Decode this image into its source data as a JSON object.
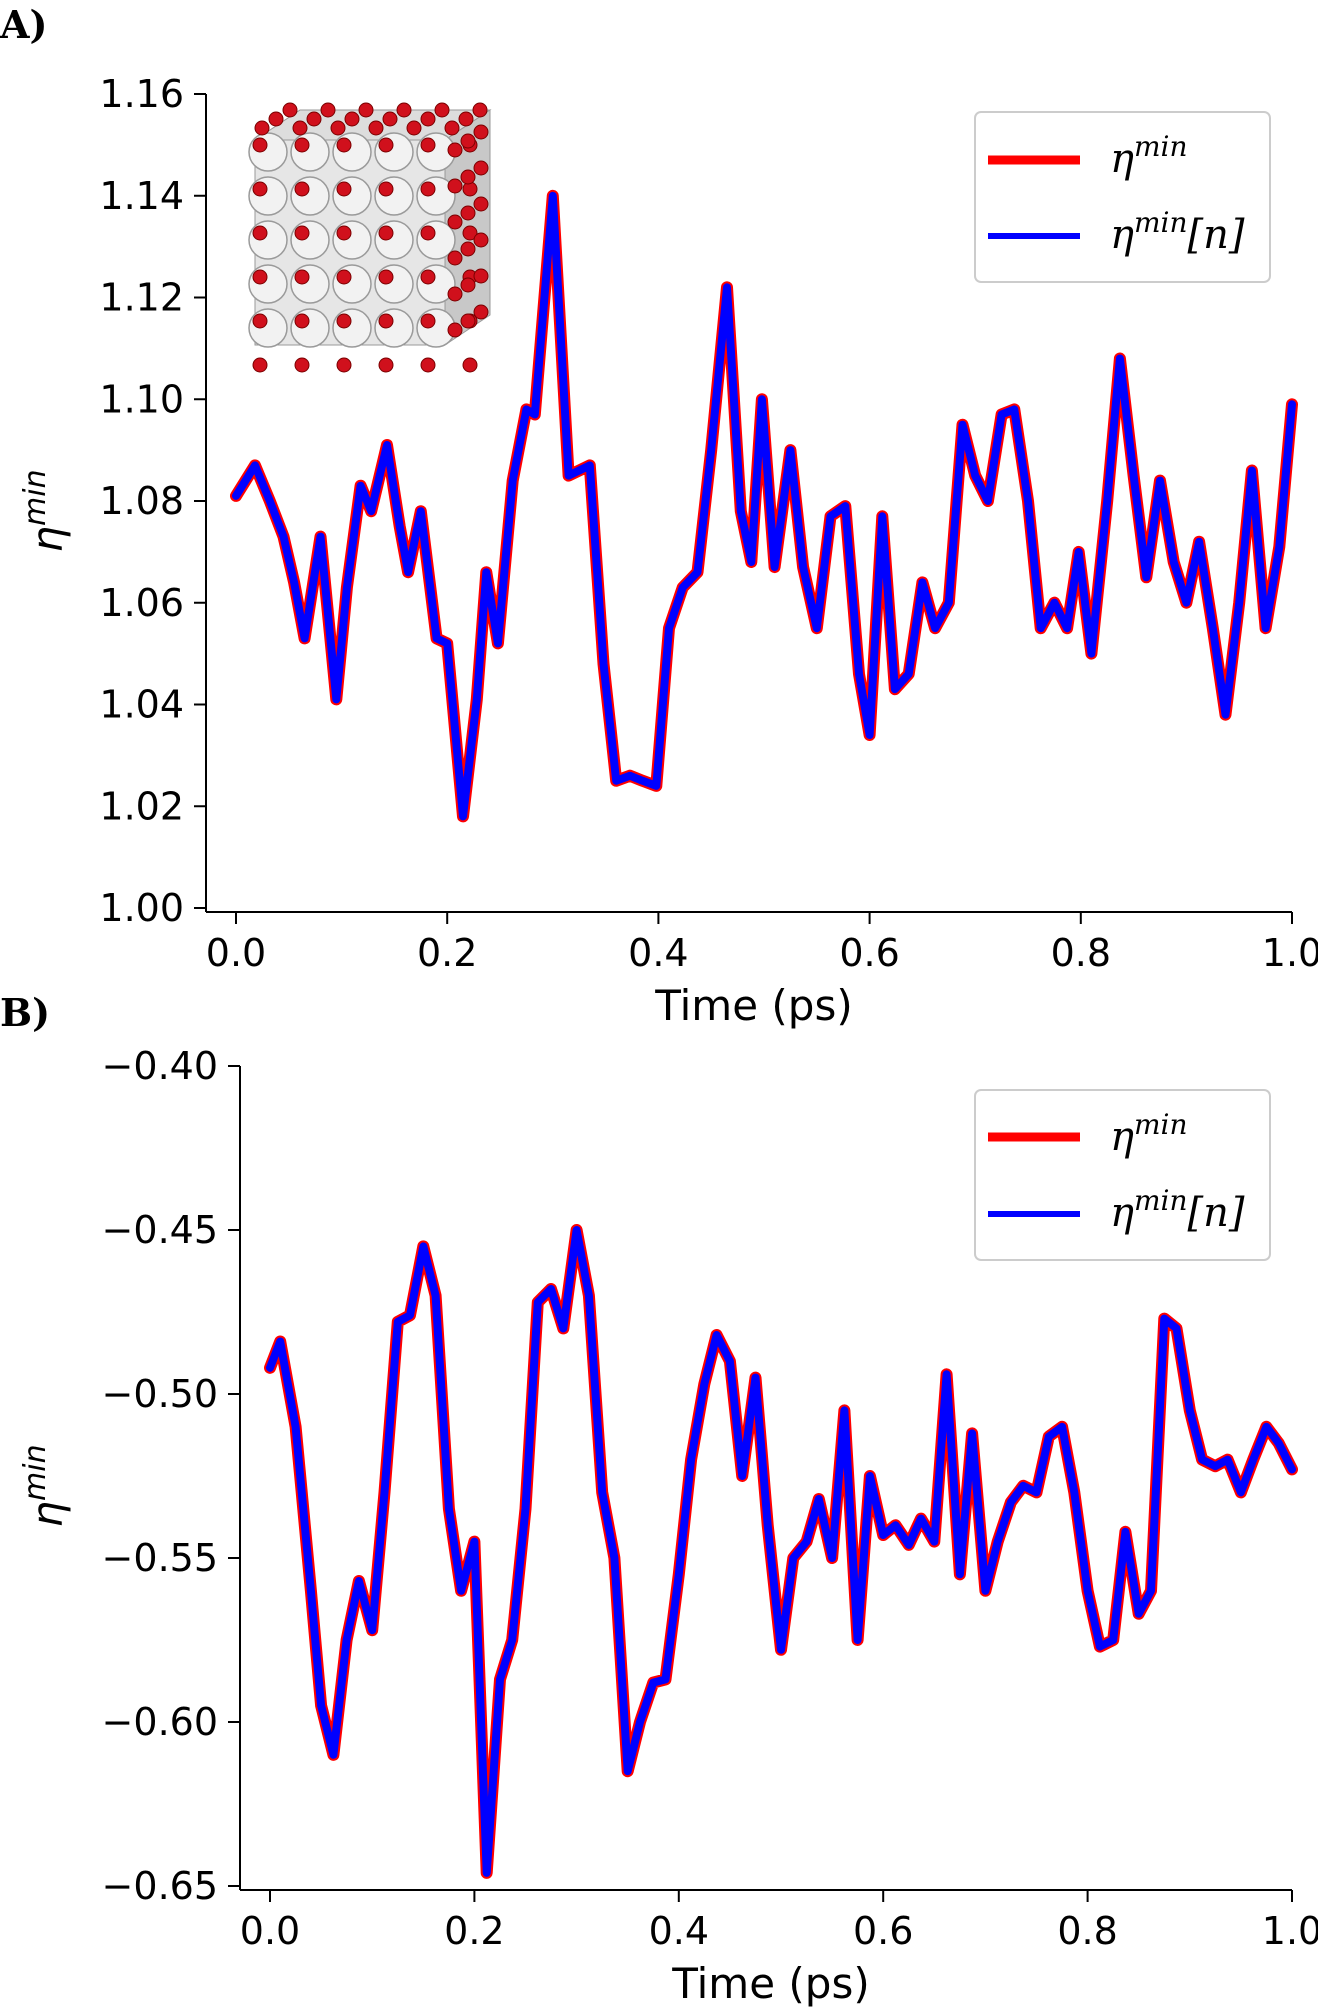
{
  "panels": [
    {
      "label": "A)",
      "legend": [
        "η^min",
        "η^min[n]"
      ],
      "inset": "oxide-crystal-cube-icon"
    },
    {
      "label": "B)",
      "legend": [
        "η^min",
        "η^min[n]"
      ]
    }
  ],
  "colors": {
    "series_red": "#ff0000",
    "series_blue": "#0000ff",
    "axis": "#000000"
  },
  "chart_data": [
    {
      "type": "line",
      "title": "",
      "xlabel": "Time (ps)",
      "ylabel": "η^min",
      "xlim": [
        0.0,
        1.0
      ],
      "ylim": [
        1.0,
        1.16
      ],
      "xticks": [
        "0.0",
        "0.2",
        "0.4",
        "0.6",
        "0.8",
        "1.0"
      ],
      "yticks": [
        "1.00",
        "1.02",
        "1.04",
        "1.06",
        "1.08",
        "1.10",
        "1.12",
        "1.14",
        "1.16"
      ],
      "grid": false,
      "legend_position": "top-right",
      "series": [
        {
          "name": "η^min",
          "color": "#ff0000",
          "x": [
            0.0,
            0.018,
            0.032,
            0.045,
            0.055,
            0.065,
            0.08,
            0.095,
            0.105,
            0.118,
            0.128,
            0.143,
            0.155,
            0.163,
            0.175,
            0.19,
            0.2,
            0.215,
            0.228,
            0.237,
            0.248,
            0.262,
            0.275,
            0.283,
            0.3,
            0.315,
            0.335,
            0.348,
            0.36,
            0.373,
            0.385,
            0.398,
            0.41,
            0.423,
            0.437,
            0.45,
            0.465,
            0.478,
            0.488,
            0.498,
            0.51,
            0.525,
            0.537,
            0.55,
            0.563,
            0.577,
            0.59,
            0.6,
            0.612,
            0.624,
            0.637,
            0.65,
            0.662,
            0.675,
            0.688,
            0.7,
            0.712,
            0.725,
            0.737,
            0.75,
            0.762,
            0.775,
            0.787,
            0.798,
            0.81,
            0.825,
            0.837,
            0.85,
            0.862,
            0.875,
            0.888,
            0.9,
            0.912,
            0.925,
            0.937,
            0.95,
            0.962,
            0.975,
            0.988,
            1.0
          ],
          "y": [
            1.081,
            1.087,
            1.08,
            1.073,
            1.064,
            1.053,
            1.073,
            1.041,
            1.063,
            1.083,
            1.078,
            1.091,
            1.075,
            1.066,
            1.078,
            1.053,
            1.052,
            1.018,
            1.041,
            1.066,
            1.052,
            1.084,
            1.098,
            1.097,
            1.14,
            1.085,
            1.087,
            1.048,
            1.025,
            1.026,
            1.025,
            1.024,
            1.055,
            1.063,
            1.066,
            1.09,
            1.122,
            1.078,
            1.068,
            1.1,
            1.067,
            1.09,
            1.067,
            1.055,
            1.077,
            1.079,
            1.046,
            1.034,
            1.077,
            1.043,
            1.046,
            1.064,
            1.055,
            1.06,
            1.095,
            1.085,
            1.08,
            1.097,
            1.098,
            1.08,
            1.055,
            1.06,
            1.055,
            1.07,
            1.05,
            1.08,
            1.108,
            1.085,
            1.065,
            1.084,
            1.068,
            1.06,
            1.072,
            1.055,
            1.038,
            1.06,
            1.086,
            1.055,
            1.071,
            1.099
          ]
        },
        {
          "name": "η^min[n]",
          "color": "#0000ff",
          "x": [
            0.0,
            0.018,
            0.032,
            0.045,
            0.055,
            0.065,
            0.08,
            0.095,
            0.105,
            0.118,
            0.128,
            0.143,
            0.155,
            0.163,
            0.175,
            0.19,
            0.2,
            0.215,
            0.228,
            0.237,
            0.248,
            0.262,
            0.275,
            0.283,
            0.3,
            0.315,
            0.335,
            0.348,
            0.36,
            0.373,
            0.385,
            0.398,
            0.41,
            0.423,
            0.437,
            0.45,
            0.465,
            0.478,
            0.488,
            0.498,
            0.51,
            0.525,
            0.537,
            0.55,
            0.563,
            0.577,
            0.59,
            0.6,
            0.612,
            0.624,
            0.637,
            0.65,
            0.662,
            0.675,
            0.688,
            0.7,
            0.712,
            0.725,
            0.737,
            0.75,
            0.762,
            0.775,
            0.787,
            0.798,
            0.81,
            0.825,
            0.837,
            0.85,
            0.862,
            0.875,
            0.888,
            0.9,
            0.912,
            0.925,
            0.937,
            0.95,
            0.962,
            0.975,
            0.988,
            1.0
          ],
          "y": [
            1.081,
            1.087,
            1.08,
            1.073,
            1.064,
            1.053,
            1.073,
            1.041,
            1.063,
            1.083,
            1.078,
            1.091,
            1.075,
            1.066,
            1.078,
            1.053,
            1.052,
            1.018,
            1.041,
            1.066,
            1.052,
            1.084,
            1.098,
            1.097,
            1.14,
            1.085,
            1.087,
            1.048,
            1.025,
            1.026,
            1.025,
            1.024,
            1.055,
            1.063,
            1.066,
            1.09,
            1.122,
            1.078,
            1.068,
            1.1,
            1.067,
            1.09,
            1.067,
            1.055,
            1.077,
            1.079,
            1.046,
            1.034,
            1.077,
            1.043,
            1.046,
            1.064,
            1.055,
            1.06,
            1.095,
            1.085,
            1.08,
            1.097,
            1.098,
            1.08,
            1.055,
            1.06,
            1.055,
            1.07,
            1.05,
            1.08,
            1.108,
            1.085,
            1.065,
            1.084,
            1.068,
            1.06,
            1.072,
            1.055,
            1.038,
            1.06,
            1.086,
            1.055,
            1.071,
            1.099
          ]
        }
      ]
    },
    {
      "type": "line",
      "title": "",
      "xlabel": "Time (ps)",
      "ylabel": "η^min",
      "xlim": [
        0.0,
        1.0
      ],
      "ylim": [
        -0.65,
        -0.4
      ],
      "xticks": [
        "0.0",
        "0.2",
        "0.4",
        "0.6",
        "0.8",
        "1.0"
      ],
      "yticks": [
        "−0.65",
        "−0.60",
        "−0.55",
        "−0.50",
        "−0.45",
        "−0.40"
      ],
      "grid": false,
      "legend_position": "top-right",
      "series": [
        {
          "name": "η^min",
          "color": "#ff0000",
          "x": [
            0.0,
            0.01,
            0.025,
            0.04,
            0.05,
            0.062,
            0.075,
            0.087,
            0.1,
            0.112,
            0.125,
            0.137,
            0.15,
            0.162,
            0.175,
            0.187,
            0.2,
            0.212,
            0.225,
            0.237,
            0.25,
            0.262,
            0.275,
            0.287,
            0.3,
            0.312,
            0.325,
            0.337,
            0.35,
            0.362,
            0.375,
            0.387,
            0.4,
            0.412,
            0.425,
            0.437,
            0.45,
            0.462,
            0.475,
            0.487,
            0.5,
            0.512,
            0.525,
            0.537,
            0.55,
            0.562,
            0.575,
            0.587,
            0.6,
            0.612,
            0.625,
            0.637,
            0.65,
            0.662,
            0.675,
            0.687,
            0.7,
            0.712,
            0.725,
            0.737,
            0.75,
            0.762,
            0.775,
            0.787,
            0.8,
            0.812,
            0.825,
            0.837,
            0.85,
            0.862,
            0.875,
            0.887,
            0.9,
            0.912,
            0.925,
            0.937,
            0.95,
            0.962,
            0.975,
            0.987,
            1.0
          ],
          "y": [
            -0.492,
            -0.484,
            -0.51,
            -0.56,
            -0.595,
            -0.61,
            -0.575,
            -0.557,
            -0.572,
            -0.53,
            -0.478,
            -0.476,
            -0.455,
            -0.47,
            -0.535,
            -0.56,
            -0.545,
            -0.646,
            -0.587,
            -0.575,
            -0.535,
            -0.472,
            -0.468,
            -0.48,
            -0.45,
            -0.47,
            -0.53,
            -0.55,
            -0.615,
            -0.6,
            -0.588,
            -0.587,
            -0.555,
            -0.52,
            -0.497,
            -0.482,
            -0.49,
            -0.525,
            -0.495,
            -0.54,
            -0.578,
            -0.55,
            -0.545,
            -0.532,
            -0.55,
            -0.505,
            -0.575,
            -0.525,
            -0.543,
            -0.54,
            -0.546,
            -0.538,
            -0.545,
            -0.494,
            -0.555,
            -0.512,
            -0.56,
            -0.545,
            -0.533,
            -0.528,
            -0.53,
            -0.513,
            -0.51,
            -0.53,
            -0.56,
            -0.577,
            -0.575,
            -0.542,
            -0.567,
            -0.56,
            -0.477,
            -0.48,
            -0.505,
            -0.52,
            -0.522,
            -0.52,
            -0.53,
            -0.52,
            -0.51,
            -0.515,
            -0.523
          ]
        },
        {
          "name": "η^min[n]",
          "color": "#0000ff",
          "x": [
            0.0,
            0.01,
            0.025,
            0.04,
            0.05,
            0.062,
            0.075,
            0.087,
            0.1,
            0.112,
            0.125,
            0.137,
            0.15,
            0.162,
            0.175,
            0.187,
            0.2,
            0.212,
            0.225,
            0.237,
            0.25,
            0.262,
            0.275,
            0.287,
            0.3,
            0.312,
            0.325,
            0.337,
            0.35,
            0.362,
            0.375,
            0.387,
            0.4,
            0.412,
            0.425,
            0.437,
            0.45,
            0.462,
            0.475,
            0.487,
            0.5,
            0.512,
            0.525,
            0.537,
            0.55,
            0.562,
            0.575,
            0.587,
            0.6,
            0.612,
            0.625,
            0.637,
            0.65,
            0.662,
            0.675,
            0.687,
            0.7,
            0.712,
            0.725,
            0.737,
            0.75,
            0.762,
            0.775,
            0.787,
            0.8,
            0.812,
            0.825,
            0.837,
            0.85,
            0.862,
            0.875,
            0.887,
            0.9,
            0.912,
            0.925,
            0.937,
            0.95,
            0.962,
            0.975,
            0.987,
            1.0
          ],
          "y": [
            -0.492,
            -0.484,
            -0.51,
            -0.56,
            -0.595,
            -0.61,
            -0.575,
            -0.557,
            -0.572,
            -0.53,
            -0.478,
            -0.476,
            -0.455,
            -0.47,
            -0.535,
            -0.56,
            -0.545,
            -0.646,
            -0.587,
            -0.575,
            -0.535,
            -0.472,
            -0.468,
            -0.48,
            -0.45,
            -0.47,
            -0.53,
            -0.55,
            -0.615,
            -0.6,
            -0.588,
            -0.587,
            -0.555,
            -0.52,
            -0.497,
            -0.482,
            -0.49,
            -0.525,
            -0.495,
            -0.54,
            -0.578,
            -0.55,
            -0.545,
            -0.532,
            -0.55,
            -0.505,
            -0.575,
            -0.525,
            -0.543,
            -0.54,
            -0.546,
            -0.538,
            -0.545,
            -0.494,
            -0.555,
            -0.512,
            -0.56,
            -0.545,
            -0.533,
            -0.528,
            -0.53,
            -0.513,
            -0.51,
            -0.53,
            -0.56,
            -0.577,
            -0.575,
            -0.542,
            -0.567,
            -0.56,
            -0.477,
            -0.48,
            -0.505,
            -0.52,
            -0.522,
            -0.52,
            -0.53,
            -0.52,
            -0.51,
            -0.515,
            -0.523
          ]
        }
      ]
    }
  ]
}
